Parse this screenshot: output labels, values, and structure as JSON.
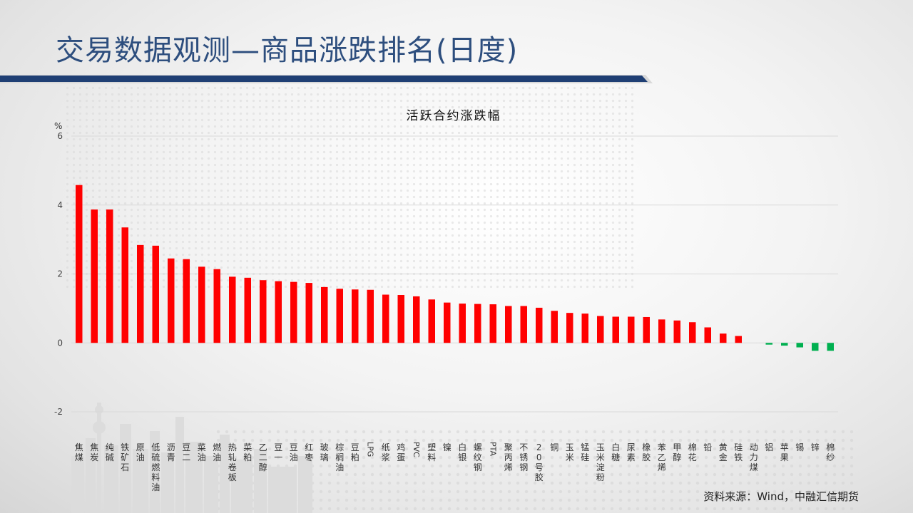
{
  "page": {
    "title": "交易数据观测—商品涨跌排名(日度)",
    "source": "资料来源：Wind，中融汇信期货"
  },
  "colors": {
    "up": "#ff0000",
    "down": "#00b050",
    "title": "#2d4e7e",
    "bar": "#1f3f74"
  },
  "chart_data": {
    "type": "bar",
    "title": "活跃合约涨跌幅",
    "ylabel": "%",
    "xlabel": "",
    "ylim": [
      -2,
      6
    ],
    "yticks": [
      -2,
      0,
      2,
      4,
      6
    ],
    "grid": true,
    "categories": [
      "焦煤",
      "焦炭",
      "纯碱",
      "铁矿石",
      "原油",
      "低硫燃料油",
      "沥青",
      "豆二",
      "菜油",
      "燃油",
      "热轧卷板",
      "菜粕",
      "乙二醇",
      "豆一",
      "豆油",
      "红枣",
      "玻璃",
      "棕榈油",
      "豆粕",
      "LPG",
      "纸浆",
      "鸡蛋",
      "PVC",
      "塑料",
      "镍",
      "白银",
      "螺纹钢",
      "PTA",
      "聚丙烯",
      "不锈钢",
      "20号胶",
      "铜",
      "玉米",
      "锰硅",
      "玉米淀粉",
      "白糖",
      "尿素",
      "橡胶",
      "苯乙烯",
      "甲醇",
      "棉花",
      "铅",
      "黄金",
      "硅铁",
      "动力煤",
      "铝",
      "苹果",
      "锡",
      "锌",
      "棉纱"
    ],
    "values": [
      4.58,
      3.87,
      3.87,
      3.35,
      2.84,
      2.82,
      2.45,
      2.43,
      2.21,
      2.14,
      1.92,
      1.89,
      1.82,
      1.79,
      1.77,
      1.74,
      1.62,
      1.57,
      1.55,
      1.54,
      1.4,
      1.39,
      1.35,
      1.26,
      1.17,
      1.14,
      1.13,
      1.12,
      1.07,
      1.07,
      1.02,
      0.93,
      0.87,
      0.85,
      0.78,
      0.76,
      0.76,
      0.75,
      0.68,
      0.65,
      0.6,
      0.45,
      0.27,
      0.2,
      0.0,
      -0.05,
      -0.08,
      -0.13,
      -0.23,
      -0.23
    ]
  }
}
